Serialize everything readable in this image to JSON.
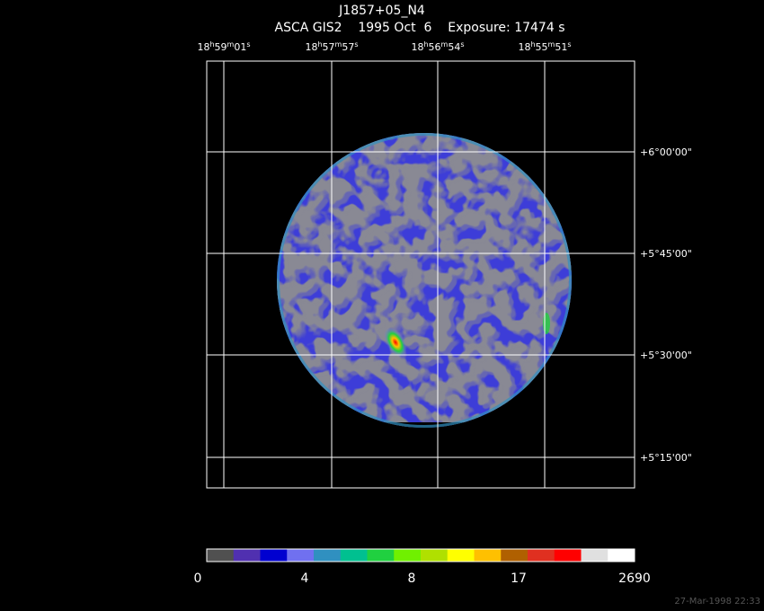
{
  "title": "J1857+05_N4",
  "subtitle": "ASCA GIS2    1995 Oct  6    Exposure: 17474 s",
  "ra_labels": [
    "18h59m01s",
    "18h57m57s",
    "18h56m54s",
    "18h55m51s"
  ],
  "dec_labels": [
    "+6°00'00\"",
    "+5°45'00\"",
    "+5°30'00\"",
    "+5°15'00\""
  ],
  "colorbar": {
    "colors": [
      "#505050",
      "#5030b0",
      "#0000d0",
      "#7070f0",
      "#3090c0",
      "#00c090",
      "#20d040",
      "#70f000",
      "#b0e000",
      "#ffff00",
      "#ffc000",
      "#b06000",
      "#e03020",
      "#ff0000",
      "#e0e0e0",
      "#ffffff"
    ],
    "ticks": [
      0,
      4,
      8,
      17,
      2690
    ]
  },
  "timestamp": "27-Mar-1998 22:33"
}
